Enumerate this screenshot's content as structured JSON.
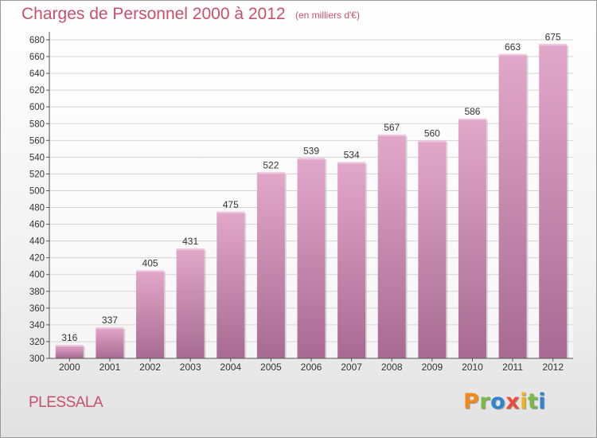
{
  "header": {
    "title": "Charges de Personnel 2000 à 2012",
    "subtitle": "(en milliers d'€)"
  },
  "footer": {
    "commune": "PLESSALA",
    "brand": "Proxiti",
    "brand_letters": [
      "P",
      "r",
      "o",
      "x",
      "i",
      "t",
      "i"
    ]
  },
  "colors": {
    "title": "#c8506e",
    "bar_top": "#e2a8ca",
    "bar_bottom": "#a86a92",
    "brand_letters": [
      "#f08a1c",
      "#7ab848",
      "#2f86cf",
      "#e84d3d",
      "#f0b21c",
      "#7ab848",
      "#2f86cf"
    ]
  },
  "chart_data": {
    "type": "bar",
    "title": "Charges de Personnel 2000 à 2012",
    "subtitle": "(en milliers d'€)",
    "categories": [
      "2000",
      "2001",
      "2002",
      "2003",
      "2004",
      "2005",
      "2006",
      "2007",
      "2008",
      "2009",
      "2010",
      "2011",
      "2012"
    ],
    "values": [
      316,
      337,
      405,
      431,
      475,
      522,
      539,
      534,
      567,
      560,
      586,
      663,
      675
    ],
    "ylim": [
      300,
      680
    ],
    "ytick_step": 20,
    "grid": true,
    "data_labels": true,
    "xlabel": "",
    "ylabel": ""
  }
}
